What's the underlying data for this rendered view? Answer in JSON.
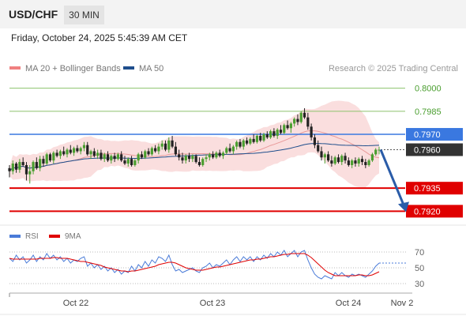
{
  "header": {
    "symbol": "USD/CHF",
    "timeframe": "30 MIN",
    "datetime": "Friday, October 24, 2025 5:45:39 AM CET"
  },
  "main_legend": [
    {
      "name": "MA 20 + Bollinger Bands",
      "color": "#f08080"
    },
    {
      "name": "MA 50",
      "color": "#1f4e8c"
    }
  ],
  "credit": "Research © 2025 Trading Central",
  "rsi_legend": [
    {
      "name": "RSI",
      "color": "#4a7bd8"
    },
    {
      "name": "9MA",
      "color": "#e00000"
    }
  ],
  "colors": {
    "up": "#4a9e2f",
    "down": "#222222",
    "green_level": "#8cc26b",
    "blue_level": "#3a78e0",
    "red_level": "#e00000",
    "current": "#333333",
    "arrow": "#2a5ca8",
    "band": "#f5c2c2"
  },
  "chart_data": {
    "type": "candlestick",
    "x_ticks": [
      "Oct 22",
      "Oct 23",
      "Oct 24",
      "Nov 2"
    ],
    "price_levels": [
      {
        "value": 0.8,
        "label": "0.8000",
        "kind": "resistance-green"
      },
      {
        "value": 0.7985,
        "label": "0.7985",
        "kind": "resistance-green"
      },
      {
        "value": 0.797,
        "label": "0.7970",
        "kind": "pivot-blue"
      },
      {
        "value": 0.796,
        "label": "0.7960",
        "kind": "current-price"
      },
      {
        "value": 0.7935,
        "label": "0.7935",
        "kind": "support-red"
      },
      {
        "value": 0.792,
        "label": "0.7920",
        "kind": "support-red"
      }
    ],
    "forecast_arrow": {
      "from": 0.796,
      "to": 0.792
    },
    "rsi_ticks": [
      70,
      50,
      30
    ],
    "ylim": [
      0.7913,
      0.8007
    ],
    "candles": [
      [
        0.7948,
        0.795,
        0.7942,
        0.7946
      ],
      [
        0.7946,
        0.7953,
        0.7944,
        0.7951
      ],
      [
        0.7951,
        0.7952,
        0.7945,
        0.7947
      ],
      [
        0.7947,
        0.7954,
        0.7945,
        0.7952
      ],
      [
        0.7952,
        0.7955,
        0.7949,
        0.795
      ],
      [
        0.795,
        0.7952,
        0.794,
        0.7944
      ],
      [
        0.7944,
        0.795,
        0.7938,
        0.7946
      ],
      [
        0.7946,
        0.7953,
        0.7944,
        0.7952
      ],
      [
        0.7952,
        0.7955,
        0.7947,
        0.7948
      ],
      [
        0.7948,
        0.7956,
        0.7946,
        0.7954
      ],
      [
        0.7954,
        0.7956,
        0.7949,
        0.7951
      ],
      [
        0.7951,
        0.7958,
        0.795,
        0.7957
      ],
      [
        0.7957,
        0.7958,
        0.7952,
        0.7953
      ],
      [
        0.7953,
        0.7959,
        0.7951,
        0.7958
      ],
      [
        0.7958,
        0.796,
        0.7955,
        0.7956
      ],
      [
        0.7956,
        0.796,
        0.7954,
        0.7959
      ],
      [
        0.7959,
        0.7962,
        0.7956,
        0.7957
      ],
      [
        0.7957,
        0.7961,
        0.7955,
        0.796
      ],
      [
        0.796,
        0.7963,
        0.7957,
        0.7958
      ],
      [
        0.7958,
        0.7962,
        0.7956,
        0.7961
      ],
      [
        0.7961,
        0.7963,
        0.7958,
        0.7959
      ],
      [
        0.7959,
        0.7962,
        0.7957,
        0.7961
      ],
      [
        0.7961,
        0.7965,
        0.7959,
        0.7963
      ],
      [
        0.7963,
        0.7965,
        0.7956,
        0.7957
      ],
      [
        0.7957,
        0.796,
        0.7954,
        0.7959
      ],
      [
        0.7959,
        0.7961,
        0.7955,
        0.7956
      ],
      [
        0.7956,
        0.796,
        0.7954,
        0.7958
      ],
      [
        0.7958,
        0.796,
        0.7953,
        0.7954
      ],
      [
        0.7954,
        0.7958,
        0.7952,
        0.7957
      ],
      [
        0.7957,
        0.7959,
        0.7952,
        0.7953
      ],
      [
        0.7953,
        0.7957,
        0.7951,
        0.7956
      ],
      [
        0.7956,
        0.7958,
        0.7952,
        0.7954
      ],
      [
        0.7954,
        0.7958,
        0.7953,
        0.7957
      ],
      [
        0.7957,
        0.7959,
        0.7952,
        0.7953
      ],
      [
        0.7953,
        0.7956,
        0.795,
        0.7951
      ],
      [
        0.7951,
        0.7955,
        0.7949,
        0.7954
      ],
      [
        0.7954,
        0.7956,
        0.7949,
        0.795
      ],
      [
        0.795,
        0.7954,
        0.7949,
        0.7953
      ],
      [
        0.7953,
        0.7958,
        0.7951,
        0.7957
      ],
      [
        0.7957,
        0.7959,
        0.7954,
        0.7955
      ],
      [
        0.7955,
        0.796,
        0.7954,
        0.7959
      ],
      [
        0.7959,
        0.7961,
        0.7956,
        0.7957
      ],
      [
        0.7957,
        0.7962,
        0.7956,
        0.7961
      ],
      [
        0.7961,
        0.7963,
        0.7958,
        0.7959
      ],
      [
        0.7959,
        0.7964,
        0.7957,
        0.7962
      ],
      [
        0.7962,
        0.7966,
        0.796,
        0.7964
      ],
      [
        0.7964,
        0.7966,
        0.7959,
        0.796
      ],
      [
        0.796,
        0.7968,
        0.7958,
        0.7966
      ],
      [
        0.7966,
        0.7969,
        0.7961,
        0.7962
      ],
      [
        0.7962,
        0.7965,
        0.7956,
        0.7957
      ],
      [
        0.7957,
        0.796,
        0.7953,
        0.7955
      ],
      [
        0.7955,
        0.7958,
        0.7951,
        0.7953
      ],
      [
        0.7953,
        0.7957,
        0.7951,
        0.7956
      ],
      [
        0.7956,
        0.7958,
        0.7952,
        0.7954
      ],
      [
        0.7954,
        0.7957,
        0.7952,
        0.7956
      ],
      [
        0.7956,
        0.7957,
        0.7951,
        0.7952
      ],
      [
        0.7952,
        0.7955,
        0.7949,
        0.795
      ],
      [
        0.795,
        0.7955,
        0.7949,
        0.7954
      ],
      [
        0.7954,
        0.7957,
        0.7952,
        0.7955
      ],
      [
        0.7955,
        0.7958,
        0.7953,
        0.7957
      ],
      [
        0.7957,
        0.7959,
        0.7954,
        0.7955
      ],
      [
        0.7955,
        0.7959,
        0.7954,
        0.7958
      ],
      [
        0.7958,
        0.796,
        0.7955,
        0.7956
      ],
      [
        0.7956,
        0.7959,
        0.7954,
        0.7958
      ],
      [
        0.7958,
        0.7962,
        0.7957,
        0.7961
      ],
      [
        0.7961,
        0.7964,
        0.7958,
        0.7959
      ],
      [
        0.7959,
        0.7963,
        0.7957,
        0.7962
      ],
      [
        0.7962,
        0.7966,
        0.796,
        0.7965
      ],
      [
        0.7965,
        0.7967,
        0.7961,
        0.7962
      ],
      [
        0.7962,
        0.7967,
        0.796,
        0.7966
      ],
      [
        0.7966,
        0.7968,
        0.7963,
        0.7964
      ],
      [
        0.7964,
        0.7968,
        0.7963,
        0.7967
      ],
      [
        0.7967,
        0.797,
        0.7964,
        0.7965
      ],
      [
        0.7965,
        0.797,
        0.7964,
        0.7969
      ],
      [
        0.7969,
        0.7971,
        0.7965,
        0.7966
      ],
      [
        0.7966,
        0.7971,
        0.7965,
        0.797
      ],
      [
        0.797,
        0.7972,
        0.7967,
        0.7968
      ],
      [
        0.7968,
        0.7973,
        0.7967,
        0.7972
      ],
      [
        0.7972,
        0.7974,
        0.7968,
        0.7969
      ],
      [
        0.7969,
        0.7974,
        0.7967,
        0.7973
      ],
      [
        0.7973,
        0.7976,
        0.797,
        0.7971
      ],
      [
        0.7971,
        0.7977,
        0.797,
        0.7976
      ],
      [
        0.7976,
        0.7979,
        0.7973,
        0.7974
      ],
      [
        0.7974,
        0.7978,
        0.7971,
        0.7977
      ],
      [
        0.7977,
        0.7981,
        0.7975,
        0.798
      ],
      [
        0.798,
        0.7983,
        0.7976,
        0.7978
      ],
      [
        0.7978,
        0.7985,
        0.7977,
        0.7984
      ],
      [
        0.7984,
        0.7987,
        0.798,
        0.7981
      ],
      [
        0.7981,
        0.7984,
        0.7973,
        0.7975
      ],
      [
        0.7975,
        0.7977,
        0.7966,
        0.7968
      ],
      [
        0.7968,
        0.797,
        0.7961,
        0.7963
      ],
      [
        0.7963,
        0.7966,
        0.7958,
        0.7959
      ],
      [
        0.7959,
        0.7962,
        0.7953,
        0.7955
      ],
      [
        0.7955,
        0.7958,
        0.7951,
        0.7957
      ],
      [
        0.7957,
        0.7959,
        0.7952,
        0.7953
      ],
      [
        0.7953,
        0.7956,
        0.7949,
        0.7951
      ],
      [
        0.7951,
        0.7956,
        0.795,
        0.7955
      ],
      [
        0.7955,
        0.7957,
        0.7951,
        0.7952
      ],
      [
        0.7952,
        0.7957,
        0.795,
        0.7956
      ],
      [
        0.7956,
        0.7958,
        0.7951,
        0.7953
      ],
      [
        0.7953,
        0.7955,
        0.7949,
        0.795
      ],
      [
        0.795,
        0.7954,
        0.7948,
        0.7953
      ],
      [
        0.7953,
        0.7955,
        0.7949,
        0.7951
      ],
      [
        0.7951,
        0.7955,
        0.7949,
        0.7954
      ],
      [
        0.7954,
        0.7956,
        0.795,
        0.7952
      ],
      [
        0.7952,
        0.7954,
        0.7948,
        0.795
      ],
      [
        0.795,
        0.7954,
        0.7949,
        0.7953
      ],
      [
        0.7953,
        0.7958,
        0.7952,
        0.7957
      ],
      [
        0.7957,
        0.7961,
        0.7956,
        0.796
      ],
      [
        0.796,
        0.7962,
        0.7957,
        0.796
      ]
    ],
    "rsi": [
      62,
      58,
      66,
      60,
      64,
      56,
      60,
      66,
      58,
      64,
      60,
      68,
      62,
      66,
      60,
      64,
      58,
      62,
      56,
      60,
      58,
      62,
      64,
      52,
      56,
      50,
      54,
      48,
      52,
      46,
      50,
      44,
      48,
      42,
      46,
      44,
      52,
      46,
      54,
      50,
      58,
      52,
      60,
      56,
      64,
      62,
      58,
      66,
      54,
      46,
      48,
      44,
      46,
      48,
      50,
      46,
      44,
      50,
      52,
      56,
      50,
      54,
      52,
      56,
      60,
      54,
      60,
      64,
      58,
      64,
      60,
      64,
      58,
      64,
      60,
      66,
      62,
      68,
      64,
      70,
      66,
      72,
      64,
      68,
      72,
      64,
      70,
      72,
      60,
      50,
      42,
      38,
      36,
      40,
      38,
      36,
      44,
      40,
      44,
      40,
      38,
      42,
      40,
      42,
      40,
      38,
      42,
      46,
      52,
      56
    ],
    "rsi_ma": [
      62,
      61,
      61,
      61,
      61,
      61,
      61,
      61,
      61,
      62,
      62,
      62,
      62,
      63,
      63,
      62,
      62,
      62,
      61,
      60,
      59,
      58,
      58,
      57,
      56,
      55,
      54,
      53,
      51,
      50,
      49,
      48,
      47,
      46,
      46,
      45,
      46,
      46,
      47,
      48,
      49,
      50,
      51,
      52,
      54,
      55,
      56,
      57,
      57,
      56,
      54,
      52,
      50,
      49,
      48,
      47,
      47,
      47,
      48,
      49,
      50,
      51,
      51,
      52,
      53,
      54,
      55,
      56,
      57,
      58,
      59,
      60,
      60,
      61,
      61,
      62,
      63,
      64,
      64,
      65,
      66,
      67,
      67,
      68,
      68,
      68,
      68,
      68,
      66,
      63,
      59,
      55,
      51,
      47,
      44,
      42,
      40,
      40,
      40,
      40,
      40,
      40,
      40,
      41,
      41,
      40,
      40,
      41,
      43,
      45
    ]
  }
}
